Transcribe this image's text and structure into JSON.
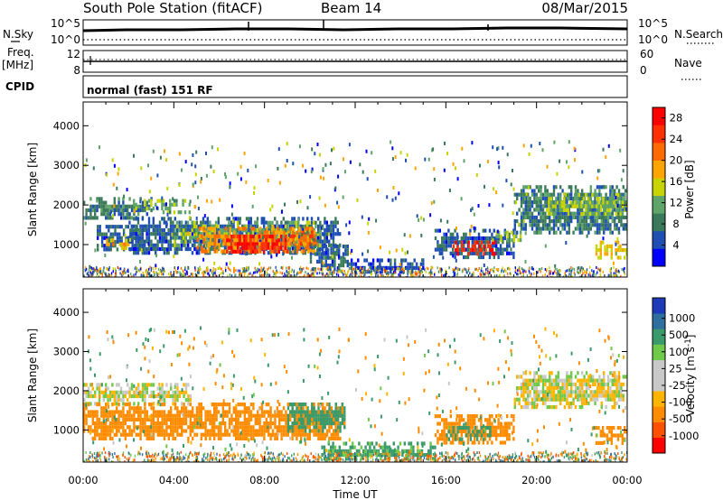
{
  "header": {
    "station": "South Pole Station (fitACF)",
    "beam": "Beam 14",
    "date": "08/Mar/2015"
  },
  "summary_panel": {
    "left_labels": {
      "nsky": "N.Sky",
      "freq_line1": "Freq.",
      "freq_line2": "[MHz]",
      "cpid": "CPID"
    },
    "left_ticks": {
      "noise_top": "10^5",
      "noise_bottom": "10^0",
      "freq_top": "12",
      "freq_bottom": "8"
    },
    "right_ticks": {
      "noise_top": "10^5",
      "noise_bottom": "10^0",
      "nave_top": "60",
      "nave_bottom": "0"
    },
    "right_labels": {
      "nsearch": "N.Search",
      "nave": "Nave"
    },
    "cpid_text": "normal (fast) 151 RF"
  },
  "colors": {
    "power_scale": [
      "#0000ff",
      "#1f4fb3",
      "#3a7a5a",
      "#5fa56a",
      "#c8d400",
      "#ffa500",
      "#ff6a00",
      "#ff3000",
      "#ff0000"
    ],
    "velocity_scale": [
      "#ff0000",
      "#ff5000",
      "#ff8c00",
      "#ffb400",
      "#c8c8c8",
      "#c8c8c8",
      "#6fc94a",
      "#3a9a6a",
      "#2f6fa0",
      "#1f3ab8"
    ],
    "grid": "#000000"
  },
  "chart_data": [
    {
      "type": "heatmap",
      "panel": "power",
      "title": "",
      "xlabel": "Time UT",
      "ylabel": "Slant Range [km]",
      "x_ticks": [
        "00:00",
        "04:00",
        "08:00",
        "12:00",
        "16:00",
        "20:00",
        "00:00"
      ],
      "xlim": [
        0,
        24
      ],
      "y_ticks": [
        1000,
        2000,
        3000,
        4000
      ],
      "ylim": [
        180,
        4600
      ],
      "colorbar": {
        "label": "Power [dB]",
        "ticks": [
          4,
          8,
          12,
          16,
          20,
          24,
          28
        ],
        "range": [
          0,
          30
        ]
      },
      "regions": [
        {
          "t0": 0.0,
          "t1": 3.0,
          "r0": 1700,
          "r1": 2200,
          "value": 8
        },
        {
          "t0": 2.0,
          "t1": 3.5,
          "r0": 1900,
          "r1": 2150,
          "value": 13
        },
        {
          "t0": 3.5,
          "t1": 4.7,
          "r0": 1850,
          "r1": 2150,
          "value": 12
        },
        {
          "t0": 0.6,
          "t1": 2.5,
          "r0": 850,
          "r1": 1500,
          "value": 6
        },
        {
          "t0": 1.0,
          "t1": 2.0,
          "r0": 900,
          "r1": 1150,
          "value": 18
        },
        {
          "t0": 2.0,
          "t1": 11.3,
          "r0": 750,
          "r1": 1700,
          "value": 6
        },
        {
          "t0": 4.0,
          "t1": 10.5,
          "r0": 1000,
          "r1": 1600,
          "value": 12
        },
        {
          "t0": 5.0,
          "t1": 10.2,
          "r0": 850,
          "r1": 1450,
          "value": 20
        },
        {
          "t0": 6.3,
          "t1": 9.0,
          "r0": 850,
          "r1": 1250,
          "value": 27
        },
        {
          "t0": 9.0,
          "t1": 10.3,
          "r0": 1050,
          "r1": 1350,
          "value": 24
        },
        {
          "t0": 10.0,
          "t1": 11.7,
          "r0": 350,
          "r1": 1000,
          "value": 6
        },
        {
          "t0": 11.7,
          "t1": 15.0,
          "r0": 300,
          "r1": 650,
          "value": 5
        },
        {
          "t0": 15.5,
          "t1": 19.0,
          "r0": 650,
          "r1": 1400,
          "value": 6
        },
        {
          "t0": 16.2,
          "t1": 18.2,
          "r0": 800,
          "r1": 1100,
          "value": 26
        },
        {
          "t0": 18.2,
          "t1": 19.5,
          "r0": 1100,
          "r1": 1350,
          "value": 14
        },
        {
          "t0": 19.0,
          "t1": 24.0,
          "r0": 1300,
          "r1": 2500,
          "value": 8
        },
        {
          "t0": 20.5,
          "t1": 24.0,
          "r0": 1800,
          "r1": 2300,
          "value": 13
        },
        {
          "t0": 22.5,
          "t1": 24.0,
          "r0": 700,
          "r1": 1100,
          "value": 17
        }
      ]
    },
    {
      "type": "heatmap",
      "panel": "velocity",
      "title": "",
      "xlabel": "Time UT",
      "ylabel": "Slant Range [km]",
      "x_ticks": [
        "00:00",
        "04:00",
        "08:00",
        "12:00",
        "16:00",
        "20:00",
        "00:00"
      ],
      "xlim": [
        0,
        24
      ],
      "y_ticks": [
        1000,
        2000,
        3000,
        4000
      ],
      "ylim": [
        180,
        4600
      ],
      "colorbar": {
        "label": "Velocity [m s-1]",
        "ticks": [
          1000,
          500,
          100,
          25,
          -25,
          -100,
          -500,
          -1000
        ]
      },
      "regions": [
        {
          "t0": 0.0,
          "t1": 4.7,
          "r0": 1700,
          "r1": 2200,
          "value": 0
        },
        {
          "t0": 0.0,
          "t1": 11.5,
          "r0": 750,
          "r1": 1700,
          "value": -300
        },
        {
          "t0": 9.0,
          "t1": 11.5,
          "r0": 1000,
          "r1": 1700,
          "value": 400
        },
        {
          "t0": 10.5,
          "t1": 15.5,
          "r0": 250,
          "r1": 700,
          "value": 150
        },
        {
          "t0": 15.5,
          "t1": 19.0,
          "r0": 700,
          "r1": 1400,
          "value": -300
        },
        {
          "t0": 16.0,
          "t1": 18.0,
          "r0": 800,
          "r1": 1100,
          "value": 200
        },
        {
          "t0": 19.0,
          "t1": 24.0,
          "r0": 1600,
          "r1": 2500,
          "value": 0
        },
        {
          "t0": 22.5,
          "t1": 24.0,
          "r0": 700,
          "r1": 1100,
          "value": -400
        }
      ]
    }
  ]
}
